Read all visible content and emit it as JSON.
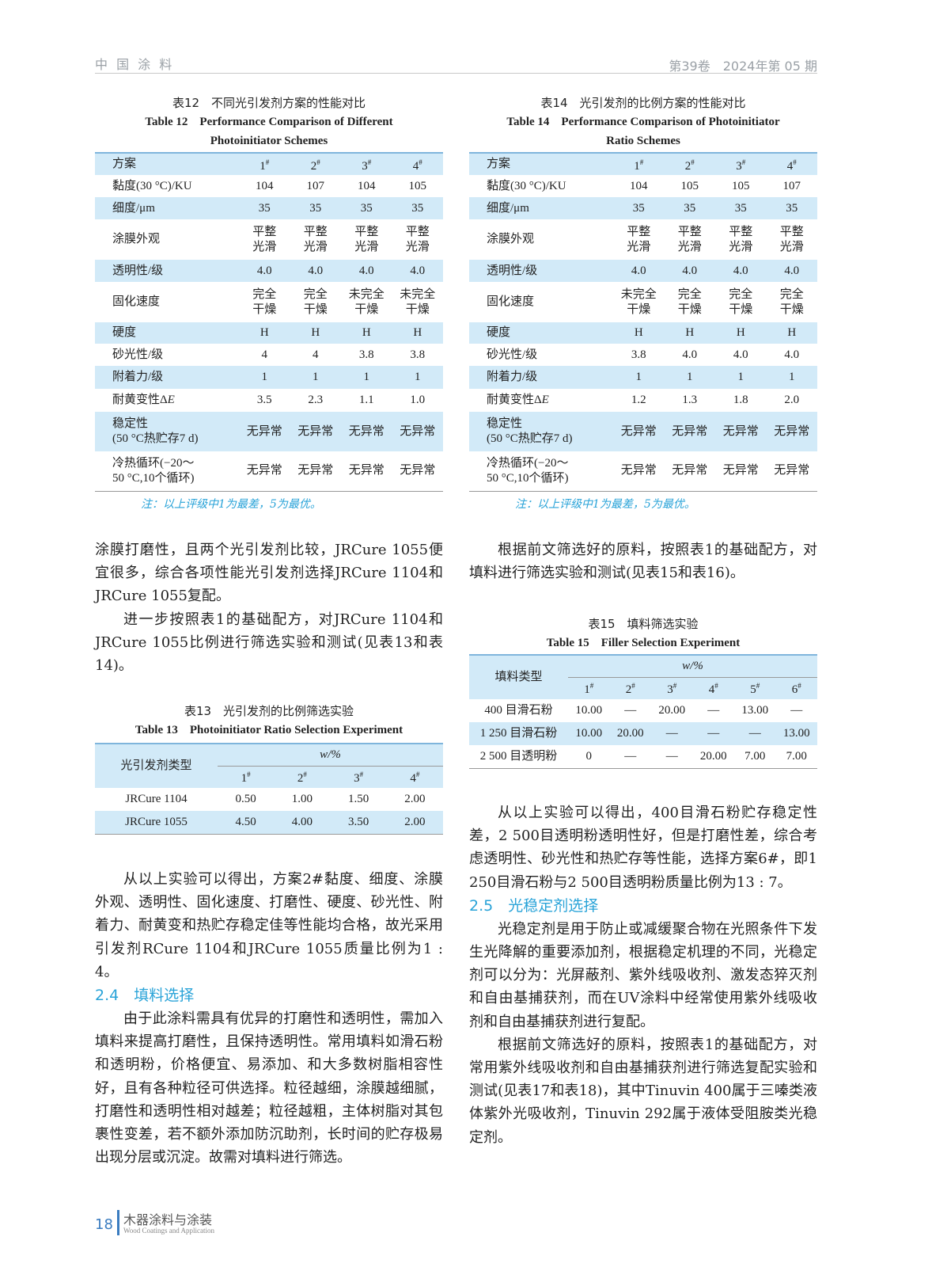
{
  "header": {
    "journal": "中 国 涂 料",
    "issue": "第39卷　2024年第 05 期"
  },
  "colors": {
    "accent": "#29a3d8",
    "row_shade": "#d2eaf8"
  },
  "table12": {
    "title_cn": "表12　不同光引发剂方案的性能对比",
    "title_en1": "Table 12　Performance Comparison of Different",
    "title_en2": "Photoinitiator Schemes",
    "header": [
      "方案",
      "1#",
      "2#",
      "3#",
      "4#"
    ],
    "rows": [
      [
        "黏度(30 °C)/KU",
        "104",
        "107",
        "104",
        "105"
      ],
      [
        "细度/μm",
        "35",
        "35",
        "35",
        "35"
      ],
      [
        "涂膜外观",
        "平整 光滑",
        "平整 光滑",
        "平整 光滑",
        "平整 光滑"
      ],
      [
        "透明性/级",
        "4.0",
        "4.0",
        "4.0",
        "4.0"
      ],
      [
        "固化速度",
        "完全 干燥",
        "完全 干燥",
        "未完全 干燥",
        "未完全 干燥"
      ],
      [
        "硬度",
        "H",
        "H",
        "H",
        "H"
      ],
      [
        "砂光性/级",
        "4",
        "4",
        "3.8",
        "3.8"
      ],
      [
        "附着力/级",
        "1",
        "1",
        "1",
        "1"
      ],
      [
        "耐黄变性ΔE",
        "3.5",
        "2.3",
        "1.1",
        "1.0"
      ],
      [
        "稳定性 (50 °C热贮存7 d)",
        "无异常",
        "无异常",
        "无异常",
        "无异常"
      ],
      [
        "冷热循环(−20～ 50 °C,10个循环)",
        "无异常",
        "无异常",
        "无异常",
        "无异常"
      ]
    ],
    "note": "注：以上评级中1为最差，5为最优。"
  },
  "table14": {
    "title_cn": "表14　光引发剂的比例方案的性能对比",
    "title_en1": "Table 14　Performance Comparison of Photoinitiator",
    "title_en2": "Ratio Schemes",
    "header": [
      "方案",
      "1#",
      "2#",
      "3#",
      "4#"
    ],
    "rows": [
      [
        "黏度(30 °C)/KU",
        "104",
        "105",
        "105",
        "107"
      ],
      [
        "细度/μm",
        "35",
        "35",
        "35",
        "35"
      ],
      [
        "涂膜外观",
        "平整 光滑",
        "平整 光滑",
        "平整 光滑",
        "平整 光滑"
      ],
      [
        "透明性/级",
        "4.0",
        "4.0",
        "4.0",
        "4.0"
      ],
      [
        "固化速度",
        "未完全 干燥",
        "完全 干燥",
        "完全 干燥",
        "完全 干燥"
      ],
      [
        "硬度",
        "H",
        "H",
        "H",
        "H"
      ],
      [
        "砂光性/级",
        "3.8",
        "4.0",
        "4.0",
        "4.0"
      ],
      [
        "附着力/级",
        "1",
        "1",
        "1",
        "1"
      ],
      [
        "耐黄变性ΔE",
        "1.2",
        "1.3",
        "1.8",
        "2.0"
      ],
      [
        "稳定性 (50 °C热贮存7 d)",
        "无异常",
        "无异常",
        "无异常",
        "无异常"
      ],
      [
        "冷热循环(−20～ 50 °C,10个循环)",
        "无异常",
        "无异常",
        "无异常",
        "无异常"
      ]
    ],
    "note": "注：以上评级中1为最差，5为最优。"
  },
  "table13": {
    "title_cn": "表13　光引发剂的比例筛选实验",
    "title_en": "Table 13　Photoinitiator Ratio Selection Experiment",
    "col0": "光引发剂类型",
    "unit": "w/%",
    "header": [
      "1#",
      "2#",
      "3#",
      "4#"
    ],
    "rows": [
      [
        "JRCure 1104",
        "0.50",
        "1.00",
        "1.50",
        "2.00"
      ],
      [
        "JRCure 1055",
        "4.50",
        "4.00",
        "3.50",
        "2.00"
      ]
    ]
  },
  "table15": {
    "title_cn": "表15　填料筛选实验",
    "title_en": "Table 15　Filler Selection Experiment",
    "col0": "填料类型",
    "unit": "w/%",
    "header": [
      "1#",
      "2#",
      "3#",
      "4#",
      "5#",
      "6#"
    ],
    "rows": [
      [
        "400 目滑石粉",
        "10.00",
        "—",
        "20.00",
        "—",
        "13.00",
        "—"
      ],
      [
        "1 250 目滑石粉",
        "10.00",
        "20.00",
        "—",
        "—",
        "—",
        "13.00"
      ],
      [
        "2 500 目透明粉",
        "0",
        "—",
        "—",
        "20.00",
        "7.00",
        "7.00"
      ]
    ]
  },
  "left": {
    "p1": "涂膜打磨性，且两个光引发剂比较，JRCure 1055便宜很多，综合各项性能光引发剂选择JRCure 1104和JRCure 1055复配。",
    "p2": "进一步按照表1的基础配方，对JRCure 1104和JRCure 1055比例进行筛选实验和测试(见表13和表14)。",
    "p3": "从以上实验可以得出，方案2#黏度、细度、涂膜外观、透明性、固化速度、打磨性、硬度、砂光性、附着力、耐黄变和热贮存稳定佳等性能均合格，故光采用引发剂RCure 1104和JRCure 1055质量比例为1 : 4。",
    "h24": "2.4　填料选择",
    "p4": "由于此涂料需具有优异的打磨性和透明性，需加入填料来提高打磨性，且保持透明性。常用填料如滑石粉和透明粉，价格便宜、易添加、和大多数树脂相容性好，且有各种粒径可供选择。粒径越细，涂膜越细腻，打磨性和透明性相对越差；粒径越粗，主体树脂对其包裹性变差，若不额外添加防沉助剂，长时间的贮存极易出现分层或沉淀。故需对填料进行筛选。"
  },
  "right": {
    "p1": "根据前文筛选好的原料，按照表1的基础配方，对填料进行筛选实验和测试(见表15和表16)。",
    "p2": "从以上实验可以得出，400目滑石粉贮存稳定性差，2 500目透明粉透明性好，但是打磨性差，综合考虑透明性、砂光性和热贮存等性能，选择方案6#，即1 250目滑石粉与2 500目透明粉质量比例为13 : 7。",
    "h25": "2.5　光稳定剂选择",
    "p3": "光稳定剂是用于防止或减缓聚合物在光照条件下发生光降解的重要添加剂，根据稳定机理的不同，光稳定剂可以分为：光屏蔽剂、紫外线吸收剂、激发态猝灭剂和自由基捕获剂，而在UV涂料中经常使用紫外线吸收剂和自由基捕获剂进行复配。",
    "p4": "根据前文筛选好的原料，按照表1的基础配方，对常用紫外线吸收剂和自由基捕获剂进行筛选复配实验和测试(见表17和表18)，其中Tinuvin 400属于三嗪类液体紫外光吸收剂，Tinuvin 292属于液体受阻胺类光稳定剂。"
  },
  "footer": {
    "page": "18",
    "journal_cn": "木器涂料与涂装",
    "journal_en": "Wood Coatings and Application"
  }
}
